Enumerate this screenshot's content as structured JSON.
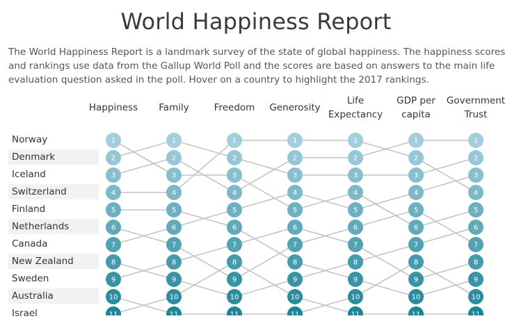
{
  "header": {
    "title": "World Happiness Report",
    "subtitle": "The World Happiness Report is a landmark survey of the state of global happiness. The happiness scores and rankings use data from the Gallup World Poll and the scores are based on answers to the main life evaluation question asked in the poll. Hover on a country to highlight the 2017 rankings."
  },
  "chart_data": {
    "type": "bump",
    "categories": [
      "Happiness",
      "Family",
      "Freedom",
      "Generosity",
      "Life Expectancy",
      "GDP per capita",
      "Government Trust"
    ],
    "category_labels": [
      [
        "Happiness"
      ],
      [
        "Family"
      ],
      [
        "Freedom"
      ],
      [
        "Generosity"
      ],
      [
        "Life",
        "Expectancy"
      ],
      [
        "GDP per",
        "capita"
      ],
      [
        "Government",
        "Trust"
      ]
    ],
    "countries": [
      "Norway",
      "Denmark",
      "Iceland",
      "Switzerland",
      "Finland",
      "Netherlands",
      "Canada",
      "New Zealand",
      "Sweden",
      "Australia",
      "Israel"
    ],
    "ranks_visible": [
      1,
      2,
      3,
      4,
      5,
      6,
      7,
      8,
      9,
      10,
      11
    ],
    "connections": [
      [
        [
          1,
          3
        ],
        [
          2,
          1
        ],
        [
          3,
          2
        ],
        [
          4,
          4
        ],
        [
          5,
          5
        ],
        [
          6,
          7
        ],
        [
          7,
          6
        ],
        [
          8,
          9
        ],
        [
          9,
          8
        ],
        [
          10,
          11
        ],
        [
          11,
          10
        ]
      ],
      [
        [
          1,
          2
        ],
        [
          2,
          4
        ],
        [
          3,
          3
        ],
        [
          4,
          1
        ],
        [
          5,
          6
        ],
        [
          6,
          5
        ],
        [
          7,
          9
        ],
        [
          8,
          7
        ],
        [
          9,
          10
        ],
        [
          10,
          8
        ],
        [
          11,
          11
        ]
      ],
      [
        [
          1,
          1
        ],
        [
          2,
          3
        ],
        [
          3,
          5
        ],
        [
          4,
          2
        ],
        [
          5,
          4
        ],
        [
          6,
          8
        ],
        [
          7,
          6
        ],
        [
          8,
          10
        ],
        [
          9,
          7
        ],
        [
          10,
          9
        ],
        [
          11,
          11
        ]
      ],
      [
        [
          1,
          1
        ],
        [
          2,
          2
        ],
        [
          3,
          3
        ],
        [
          4,
          5
        ],
        [
          5,
          4
        ],
        [
          6,
          7
        ],
        [
          7,
          6
        ],
        [
          8,
          9
        ],
        [
          9,
          8
        ],
        [
          10,
          11
        ],
        [
          11,
          10
        ]
      ],
      [
        [
          1,
          2
        ],
        [
          2,
          1
        ],
        [
          3,
          3
        ],
        [
          4,
          6
        ],
        [
          5,
          4
        ],
        [
          6,
          5
        ],
        [
          7,
          9
        ],
        [
          8,
          7
        ],
        [
          9,
          10
        ],
        [
          10,
          8
        ],
        [
          11,
          11
        ]
      ],
      [
        [
          1,
          1
        ],
        [
          2,
          4
        ],
        [
          3,
          2
        ],
        [
          4,
          3
        ],
        [
          5,
          7
        ],
        [
          6,
          5
        ],
        [
          7,
          6
        ],
        [
          8,
          10
        ],
        [
          9,
          8
        ],
        [
          10,
          9
        ],
        [
          11,
          11
        ]
      ]
    ],
    "colors": {
      "light": "#a3cede",
      "dark": "#1d8596",
      "line": "#c4c4c4",
      "label_shade": "#f2f2f2"
    },
    "legend": "none"
  }
}
